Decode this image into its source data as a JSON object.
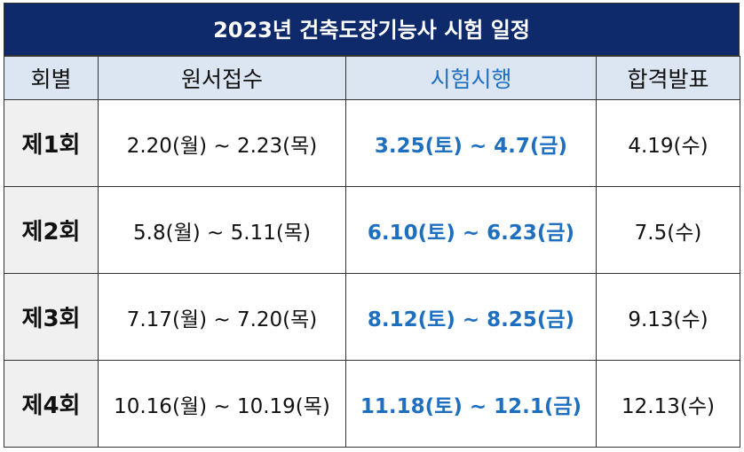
{
  "title": "2023년 건축도장기능사 시험 일정",
  "table": {
    "header": [
      "회별",
      "원서접수",
      "시험시행",
      "합격발표"
    ],
    "rows": [
      [
        "제1회",
        "2.20(월) ~ 2.23(목)",
        "3.25(토) ~ 4.7(금)",
        "4.19(수)"
      ],
      [
        "제2회",
        "5.8(월) ~ 5.11(목)",
        "6.10(토) ~ 6.23(금)",
        "7.5(수)"
      ],
      [
        "제3회",
        "7.17(월) ~ 7.20(목)",
        "8.12(토) ~ 8.25(금)",
        "9.13(수)"
      ],
      [
        "제4회",
        "10.16(월) ~ 10.19(목)",
        "11.18(토) ~ 12.1(금)",
        "12.13(수)"
      ]
    ]
  }
}
